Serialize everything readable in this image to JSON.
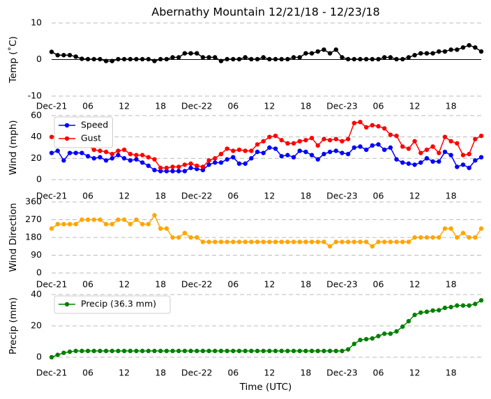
{
  "chart_data": [
    {
      "type": "line",
      "title": "Abernathy Mountain 12/21/18 - 12/23/18",
      "ylabel": "Temp (˚C)",
      "categories": [
        "Dec-21",
        null,
        null,
        null,
        null,
        null,
        "06",
        null,
        null,
        null,
        null,
        null,
        "12",
        null,
        null,
        null,
        null,
        null,
        "18",
        null,
        null,
        null,
        null,
        null,
        "Dec-22",
        null,
        null,
        null,
        null,
        null,
        "06",
        null,
        null,
        null,
        null,
        null,
        "12",
        null,
        null,
        null,
        null,
        null,
        "18",
        null,
        null,
        null,
        null,
        null,
        "Dec-23",
        null,
        null,
        null,
        null,
        null,
        "06",
        null,
        null,
        null,
        null,
        null,
        "12",
        null,
        null,
        null,
        null,
        null,
        "18",
        null,
        null,
        null,
        null,
        null
      ],
      "values": [
        2.1,
        1.2,
        1.2,
        1.2,
        0.8,
        0.2,
        0.1,
        0.1,
        0.1,
        -0.4,
        -0.4,
        0.1,
        0.1,
        0.1,
        0.1,
        0.1,
        0.1,
        -0.4,
        0.1,
        0.1,
        0.6,
        0.6,
        1.7,
        1.7,
        1.7,
        0.6,
        0.6,
        0.6,
        -0.4,
        0.1,
        0.1,
        0.1,
        0.6,
        0.1,
        0.1,
        0.6,
        0.1,
        0.1,
        0.1,
        0.1,
        0.6,
        0.6,
        1.7,
        1.7,
        2.2,
        2.7,
        1.7,
        2.7,
        0.6,
        0.1,
        0.1,
        0.1,
        0.1,
        0.1,
        0.1,
        0.6,
        0.6,
        0.1,
        0.1,
        0.6,
        1.2,
        1.7,
        1.7,
        1.7,
        2.2,
        2.2,
        2.7,
        2.7,
        3.3,
        3.9,
        3.3,
        2.2
      ],
      "color": "#000000",
      "ylim": [
        -10,
        10
      ],
      "yticks": [
        -10,
        0,
        10
      ],
      "grid": true,
      "zero_line": true
    },
    {
      "type": "line",
      "ylabel": "Wind (mph)",
      "legend": "upper left",
      "categories": [
        "Dec-21",
        null,
        null,
        null,
        null,
        null,
        "06",
        null,
        null,
        null,
        null,
        null,
        "12",
        null,
        null,
        null,
        null,
        null,
        "18",
        null,
        null,
        null,
        null,
        null,
        "Dec-22",
        null,
        null,
        null,
        null,
        null,
        "06",
        null,
        null,
        null,
        null,
        null,
        "12",
        null,
        null,
        null,
        null,
        null,
        "18",
        null,
        null,
        null,
        null,
        null,
        "Dec-23",
        null,
        null,
        null,
        null,
        null,
        "06",
        null,
        null,
        null,
        null,
        null,
        "12",
        null,
        null,
        null,
        null,
        null,
        "18",
        null,
        null,
        null,
        null,
        null
      ],
      "series": [
        {
          "name": "Speed",
          "color": "#0000ff",
          "values": [
            25,
            27,
            18,
            25,
            25,
            25,
            22,
            20,
            21,
            18,
            20,
            23,
            20,
            18,
            19,
            16,
            13,
            9,
            8,
            8,
            8,
            8,
            8,
            11,
            10,
            9,
            14,
            16,
            16,
            19,
            21,
            15,
            15,
            20,
            26,
            25,
            30,
            29,
            22,
            23,
            21,
            27,
            26,
            23,
            19,
            24,
            26,
            27,
            25,
            24,
            30,
            31,
            28,
            32,
            33,
            28,
            30,
            19,
            16,
            15,
            14,
            16,
            20,
            17,
            17,
            26,
            23,
            12,
            14,
            11,
            18,
            21
          ]
        },
        {
          "name": "Gust",
          "color": "#ff0000",
          "values": [
            40,
            40,
            40,
            38,
            37,
            37,
            32,
            28,
            27,
            26,
            24,
            27,
            28,
            24,
            23,
            23,
            21,
            19,
            11,
            11,
            12,
            12,
            14,
            15,
            13,
            12,
            18,
            20,
            24,
            29,
            27,
            28,
            27,
            27,
            33,
            36,
            40,
            41,
            37,
            34,
            34,
            36,
            37,
            39,
            32,
            38,
            37,
            38,
            36,
            38,
            53,
            54,
            49,
            51,
            50,
            48,
            42,
            41,
            31,
            29,
            36,
            25,
            28,
            31,
            25,
            40,
            36,
            34,
            23,
            24,
            38,
            41
          ]
        }
      ],
      "ylim": [
        0,
        60
      ],
      "yticks": [
        0,
        20,
        40,
        60
      ],
      "grid": true
    },
    {
      "type": "line",
      "ylabel": "Wind Direction",
      "categories": [
        "Dec-21",
        null,
        null,
        null,
        null,
        null,
        "06",
        null,
        null,
        null,
        null,
        null,
        "12",
        null,
        null,
        null,
        null,
        null,
        "18",
        null,
        null,
        null,
        null,
        null,
        "Dec-22",
        null,
        null,
        null,
        null,
        null,
        "06",
        null,
        null,
        null,
        null,
        null,
        "12",
        null,
        null,
        null,
        null,
        null,
        "18",
        null,
        null,
        null,
        null,
        null,
        "Dec-23",
        null,
        null,
        null,
        null,
        null,
        "06",
        null,
        null,
        null,
        null,
        null,
        "12",
        null,
        null,
        null,
        null,
        null,
        "18",
        null,
        null,
        null,
        null,
        null
      ],
      "values": [
        225,
        247.5,
        247.5,
        247.5,
        247.5,
        270,
        270,
        270,
        270,
        247.5,
        247.5,
        270,
        270,
        247.5,
        270,
        247.5,
        247.5,
        292.5,
        225,
        225,
        180,
        180,
        202.5,
        180,
        180,
        157.5,
        157.5,
        157.5,
        157.5,
        157.5,
        157.5,
        157.5,
        157.5,
        157.5,
        157.5,
        157.5,
        157.5,
        157.5,
        157.5,
        157.5,
        157.5,
        157.5,
        157.5,
        157.5,
        157.5,
        157.5,
        135,
        157.5,
        157.5,
        157.5,
        157.5,
        157.5,
        157.5,
        135,
        157.5,
        157.5,
        157.5,
        157.5,
        157.5,
        157.5,
        180,
        180,
        180,
        180,
        180,
        225,
        225,
        180,
        202.5,
        180,
        180,
        225
      ],
      "color": "#ffa500",
      "ylim": [
        0,
        360
      ],
      "yticks": [
        0,
        90,
        180,
        270,
        360
      ],
      "grid": true
    },
    {
      "type": "line",
      "ylabel": "Precip (mm)",
      "xlabel": "Time (UTC)",
      "legend": "upper left",
      "categories": [
        "Dec-21",
        null,
        null,
        null,
        null,
        null,
        "06",
        null,
        null,
        null,
        null,
        null,
        "12",
        null,
        null,
        null,
        null,
        null,
        "18",
        null,
        null,
        null,
        null,
        null,
        "Dec-22",
        null,
        null,
        null,
        null,
        null,
        "06",
        null,
        null,
        null,
        null,
        null,
        "12",
        null,
        null,
        null,
        null,
        null,
        "18",
        null,
        null,
        null,
        null,
        null,
        "Dec-23",
        null,
        null,
        null,
        null,
        null,
        "06",
        null,
        null,
        null,
        null,
        null,
        "12",
        null,
        null,
        null,
        null,
        null,
        "18",
        null,
        null,
        null,
        null,
        null
      ],
      "series": [
        {
          "name": "Precip (36.3 mm)",
          "color": "#008000",
          "values": [
            0,
            1.5,
            2.8,
            3.5,
            4,
            4,
            4,
            4,
            4,
            4,
            4,
            4,
            4,
            4,
            4,
            4,
            4,
            4,
            4,
            4,
            4,
            4,
            4,
            4,
            4,
            4,
            4,
            4,
            4,
            4,
            4,
            4,
            4,
            4,
            4,
            4,
            4,
            4,
            4,
            4,
            4,
            4,
            4,
            4,
            4,
            4,
            4,
            4,
            4,
            5,
            8.5,
            11,
            11.5,
            12,
            13.5,
            15,
            15,
            16.5,
            19.5,
            23,
            27,
            28.5,
            29,
            29.8,
            30,
            31.5,
            32,
            33,
            33,
            33,
            34,
            36.3
          ]
        }
      ],
      "ylim": [
        0,
        40
      ],
      "yticks": [
        0,
        20,
        40
      ],
      "grid": true
    }
  ]
}
